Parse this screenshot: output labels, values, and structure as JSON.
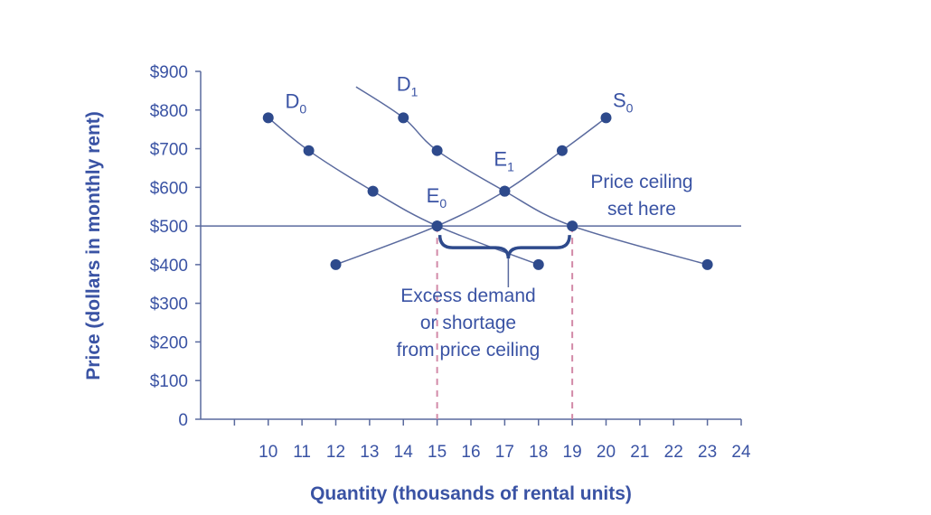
{
  "chart_data": {
    "type": "line",
    "xlabel": "Quantity (thousands of rental units)",
    "ylabel": "Price (dollars in monthly rent)",
    "xlim": [
      8,
      24
    ],
    "ylim": [
      0,
      900
    ],
    "x_ticks": [
      "10",
      "11",
      "12",
      "13",
      "14",
      "15",
      "16",
      "17",
      "18",
      "19",
      "20",
      "21",
      "22",
      "23",
      "24"
    ],
    "y_ticks": [
      "0",
      "$100",
      "$200",
      "$300",
      "$400",
      "$500",
      "$600",
      "$700",
      "$800",
      "$900"
    ],
    "series": [
      {
        "name": "D",
        "sub": "0",
        "points": [
          [
            10,
            780
          ],
          [
            11.2,
            695
          ],
          [
            13.1,
            590
          ],
          [
            15,
            500
          ],
          [
            18,
            400
          ]
        ],
        "label_at": [
          10.5,
          805
        ]
      },
      {
        "name": "D",
        "sub": "1",
        "points": [
          [
            14,
            780
          ],
          [
            15,
            695
          ],
          [
            17,
            590
          ],
          [
            19,
            500
          ],
          [
            23,
            400
          ]
        ],
        "curve_start": [
          12.6,
          860
        ],
        "label_at": [
          13.8,
          850
        ]
      },
      {
        "name": "S",
        "sub": "0",
        "points": [
          [
            12,
            400
          ],
          [
            15,
            500
          ],
          [
            17,
            590
          ],
          [
            18.7,
            695
          ],
          [
            20,
            780
          ]
        ],
        "label_at": [
          20.2,
          808
        ]
      }
    ],
    "price_ceiling": 500,
    "price_ceiling_label": [
      "Price ceiling",
      "set here"
    ],
    "equilibria": [
      {
        "name": "E",
        "sub": "0",
        "x": 15,
        "y": 500
      },
      {
        "name": "E",
        "sub": "1",
        "x": 17,
        "y": 590
      }
    ],
    "shortage_range": [
      15,
      19
    ],
    "shortage_label": [
      "Excess demand",
      "or shortage",
      "from price ceiling"
    ],
    "colors": {
      "line": "#5a6a9e",
      "marker": "#2e4a8c",
      "text": "#3a53a4",
      "guide": "#d28aa8"
    }
  }
}
